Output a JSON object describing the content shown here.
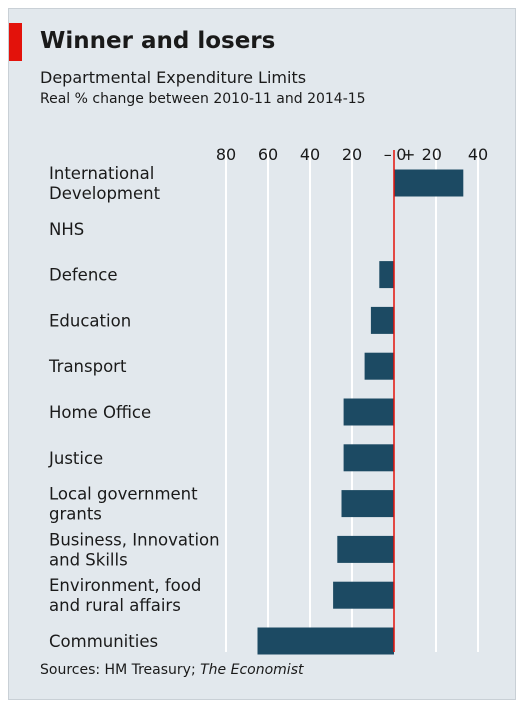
{
  "colors": {
    "background": "#e2e8ed",
    "bar": "#1c4a63",
    "zero_line": "#e3120b",
    "grid": "#ffffff",
    "accent_tag": "#e3120b"
  },
  "source": {
    "prefix": "Sources: HM Treasury; ",
    "italic": "The Economist"
  },
  "chart_data": {
    "type": "bar",
    "orientation": "horizontal",
    "title": "Winner and losers",
    "subtitle": "Departmental Expenditure Limits",
    "note": "Real % change between 2010-11 and 2014-15",
    "categories": [
      [
        "International",
        "Development"
      ],
      [
        "NHS"
      ],
      [
        "Defence"
      ],
      [
        "Education"
      ],
      [
        "Transport"
      ],
      [
        "Home Office"
      ],
      [
        "Justice"
      ],
      [
        "Local government",
        "grants"
      ],
      [
        "Business, Innovation",
        "and Skills"
      ],
      [
        "Environment, food",
        "and rural affairs"
      ],
      [
        "Communities"
      ]
    ],
    "values": [
      33,
      0,
      -7,
      -11,
      -14,
      -24,
      -24,
      -25,
      -27,
      -29,
      -65
    ],
    "xlim": [
      -80,
      40
    ],
    "xticks": [
      -80,
      -60,
      -40,
      -20,
      0,
      20,
      40
    ],
    "xtick_labels": [
      "80",
      "60",
      "40",
      "20",
      "–",
      "0",
      "+",
      "20",
      "40"
    ],
    "grid": true,
    "xaxis_position": "top"
  }
}
